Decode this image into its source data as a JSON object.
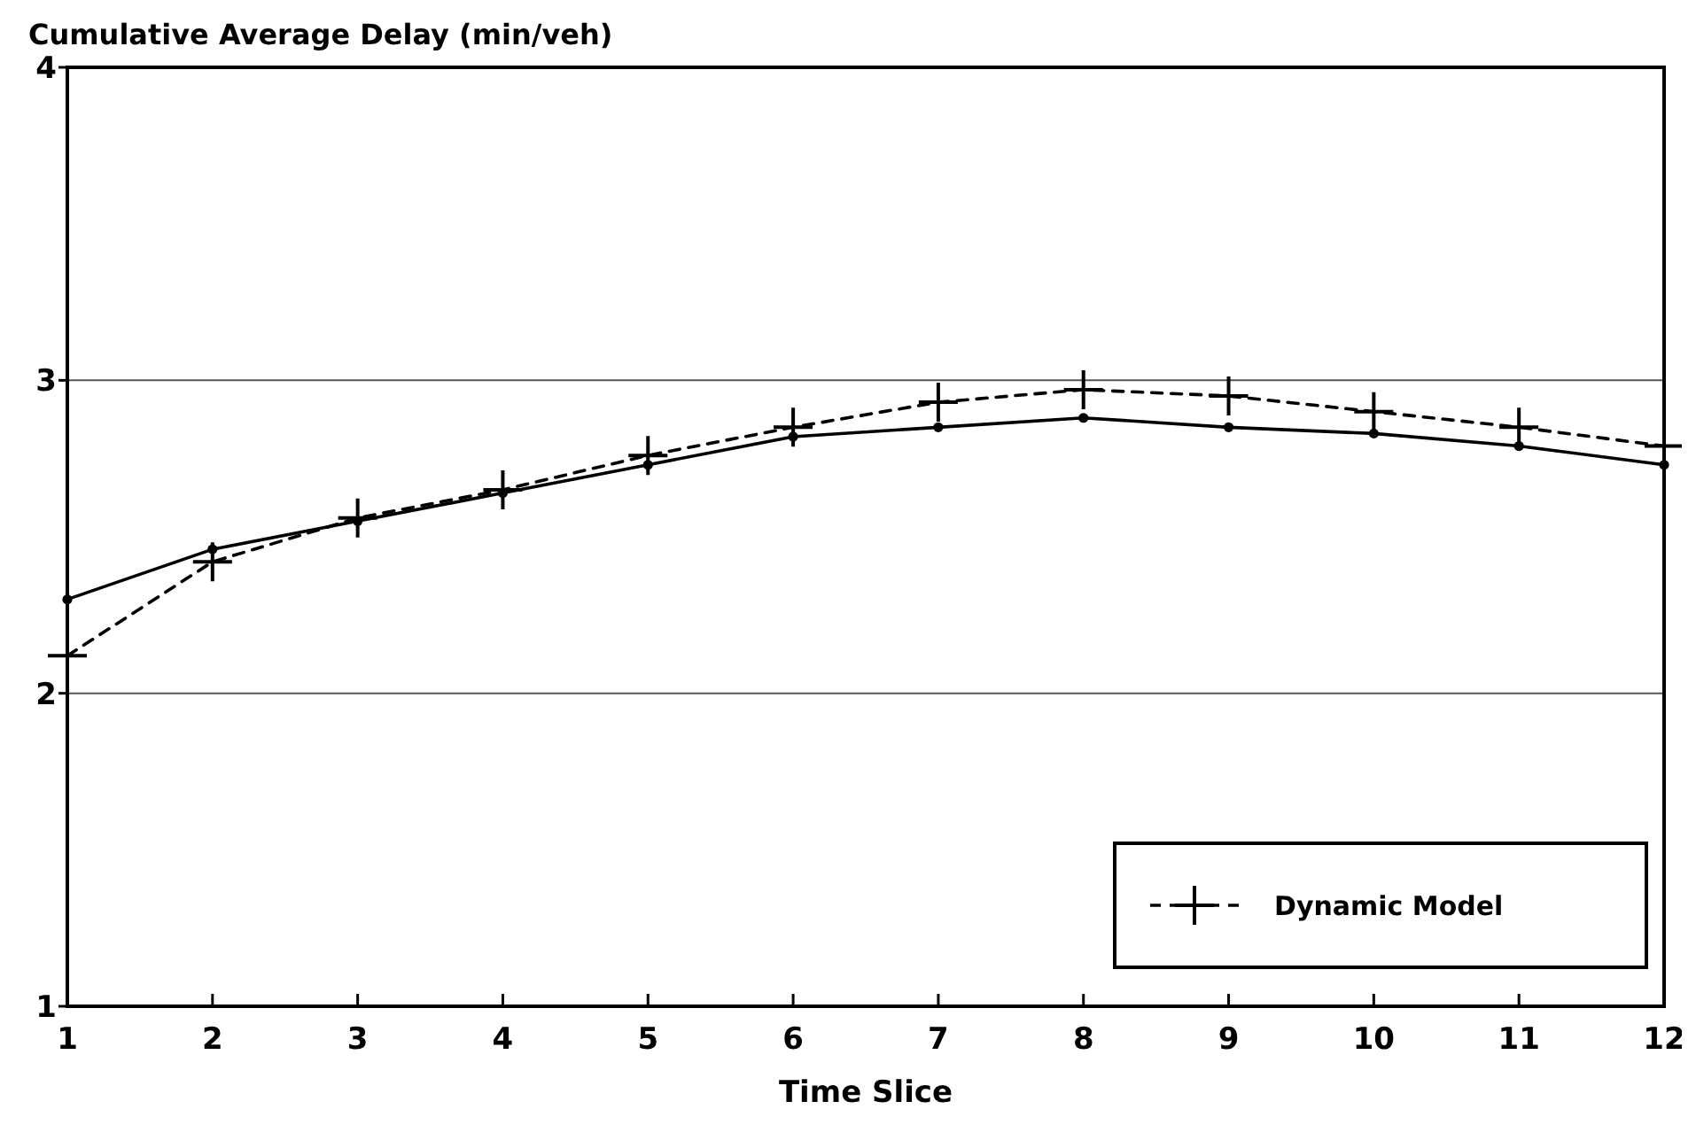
{
  "chart_data": {
    "type": "line",
    "ylabel": "Cumulative Average Delay (min/veh)",
    "xlabel": "Time Slice",
    "x": [
      1,
      2,
      3,
      4,
      5,
      6,
      7,
      8,
      9,
      10,
      11,
      12
    ],
    "series": [
      {
        "color": "#000000",
        "marker": "circle",
        "line_style": "solid",
        "values": [
          2.3,
          2.46,
          2.55,
          2.64,
          2.73,
          2.82,
          2.85,
          2.88,
          2.85,
          2.83,
          2.79,
          2.73
        ]
      },
      {
        "name": "Dynamic Model",
        "color": "#000000",
        "marker": "cross",
        "line_style": "dashed",
        "values": [
          2.12,
          2.42,
          2.56,
          2.65,
          2.76,
          2.85,
          2.93,
          2.97,
          2.95,
          2.9,
          2.85,
          2.79
        ]
      }
    ],
    "xlim": [
      1,
      12
    ],
    "xticks": [
      1,
      2,
      3,
      4,
      5,
      6,
      7,
      8,
      9,
      10,
      11,
      12
    ],
    "ylim": [
      1,
      4
    ],
    "yticks": [
      1,
      2,
      3,
      4
    ],
    "grid": "y",
    "legend": "bottom right"
  }
}
